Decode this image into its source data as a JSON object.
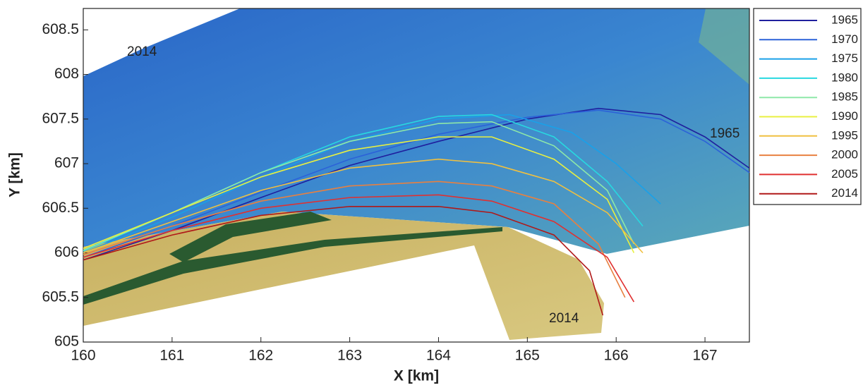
{
  "chart_data": {
    "type": "line",
    "xlabel": "X [km]",
    "ylabel": "Y [km]",
    "xlim": [
      160,
      167.5
    ],
    "ylim": [
      605,
      608.74
    ],
    "xticks": [
      160,
      161,
      162,
      163,
      164,
      165,
      166,
      167
    ],
    "yticks": [
      605,
      605.5,
      606,
      606.5,
      607,
      607.5,
      608,
      608.5
    ],
    "grid": false,
    "legend": "outside-right",
    "annotations": [
      "2014",
      "1965",
      "2014"
    ],
    "series": [
      {
        "name": "1965",
        "color": "#1f1f9e",
        "x": [
          160,
          161,
          162,
          163,
          164,
          165,
          165.8,
          166.5,
          167,
          167.5
        ],
        "values": [
          605.92,
          606.25,
          606.62,
          606.98,
          607.25,
          607.5,
          607.62,
          607.55,
          607.3,
          606.95
        ]
      },
      {
        "name": "1970",
        "color": "#2c62d8",
        "x": [
          160,
          161,
          162,
          163,
          164,
          165,
          165.8,
          166.5,
          167,
          167.5
        ],
        "values": [
          605.95,
          606.3,
          606.68,
          607.05,
          607.33,
          607.52,
          607.6,
          607.5,
          607.25,
          606.9
        ]
      },
      {
        "name": "1975",
        "color": "#1aa0e8",
        "x": [
          160,
          161,
          162,
          163,
          164,
          164.8,
          165.5,
          166,
          166.5
        ],
        "values": [
          606.0,
          606.4,
          606.85,
          607.25,
          607.5,
          607.55,
          607.35,
          607.0,
          606.55
        ]
      },
      {
        "name": "1980",
        "color": "#28d8e0",
        "x": [
          160,
          161,
          162,
          163,
          164,
          164.6,
          165.3,
          165.9,
          166.3
        ],
        "values": [
          606.02,
          606.45,
          606.9,
          607.3,
          607.53,
          607.55,
          607.3,
          606.8,
          606.3
        ]
      },
      {
        "name": "1985",
        "color": "#8ee8a8",
        "x": [
          160,
          161,
          162,
          163,
          164,
          164.6,
          165.3,
          165.9,
          166.2
        ],
        "values": [
          606.03,
          606.45,
          606.9,
          607.25,
          607.45,
          607.47,
          607.2,
          606.7,
          606.1
        ]
      },
      {
        "name": "1990",
        "color": "#e8f040",
        "x": [
          160,
          161,
          162,
          163,
          164,
          164.6,
          165.3,
          165.9,
          166.2
        ],
        "values": [
          606.05,
          606.45,
          606.85,
          607.15,
          607.3,
          607.3,
          607.05,
          606.6,
          606.0
        ]
      },
      {
        "name": "1995",
        "color": "#f0c040",
        "x": [
          160,
          161,
          162,
          163,
          164,
          164.6,
          165.3,
          165.9,
          166.3
        ],
        "values": [
          606.0,
          606.35,
          606.7,
          606.95,
          607.05,
          607.0,
          606.8,
          606.45,
          606.0
        ]
      },
      {
        "name": "2000",
        "color": "#e88040",
        "x": [
          160,
          161,
          162,
          163,
          164,
          164.6,
          165.3,
          165.8,
          166.1
        ],
        "values": [
          605.98,
          606.3,
          606.58,
          606.75,
          606.8,
          606.75,
          606.55,
          606.1,
          605.5
        ]
      },
      {
        "name": "2005",
        "color": "#e03030",
        "x": [
          160,
          161,
          162,
          163,
          164,
          164.6,
          165.3,
          165.9,
          166.2
        ],
        "values": [
          605.95,
          606.25,
          606.5,
          606.62,
          606.65,
          606.58,
          606.35,
          605.95,
          605.45
        ]
      },
      {
        "name": "2014",
        "color": "#b01818",
        "x": [
          160,
          161,
          162,
          163,
          164,
          164.6,
          165.3,
          165.7,
          165.85
        ],
        "values": [
          605.92,
          606.2,
          606.42,
          606.52,
          606.52,
          606.45,
          606.2,
          605.8,
          605.3
        ]
      }
    ]
  }
}
